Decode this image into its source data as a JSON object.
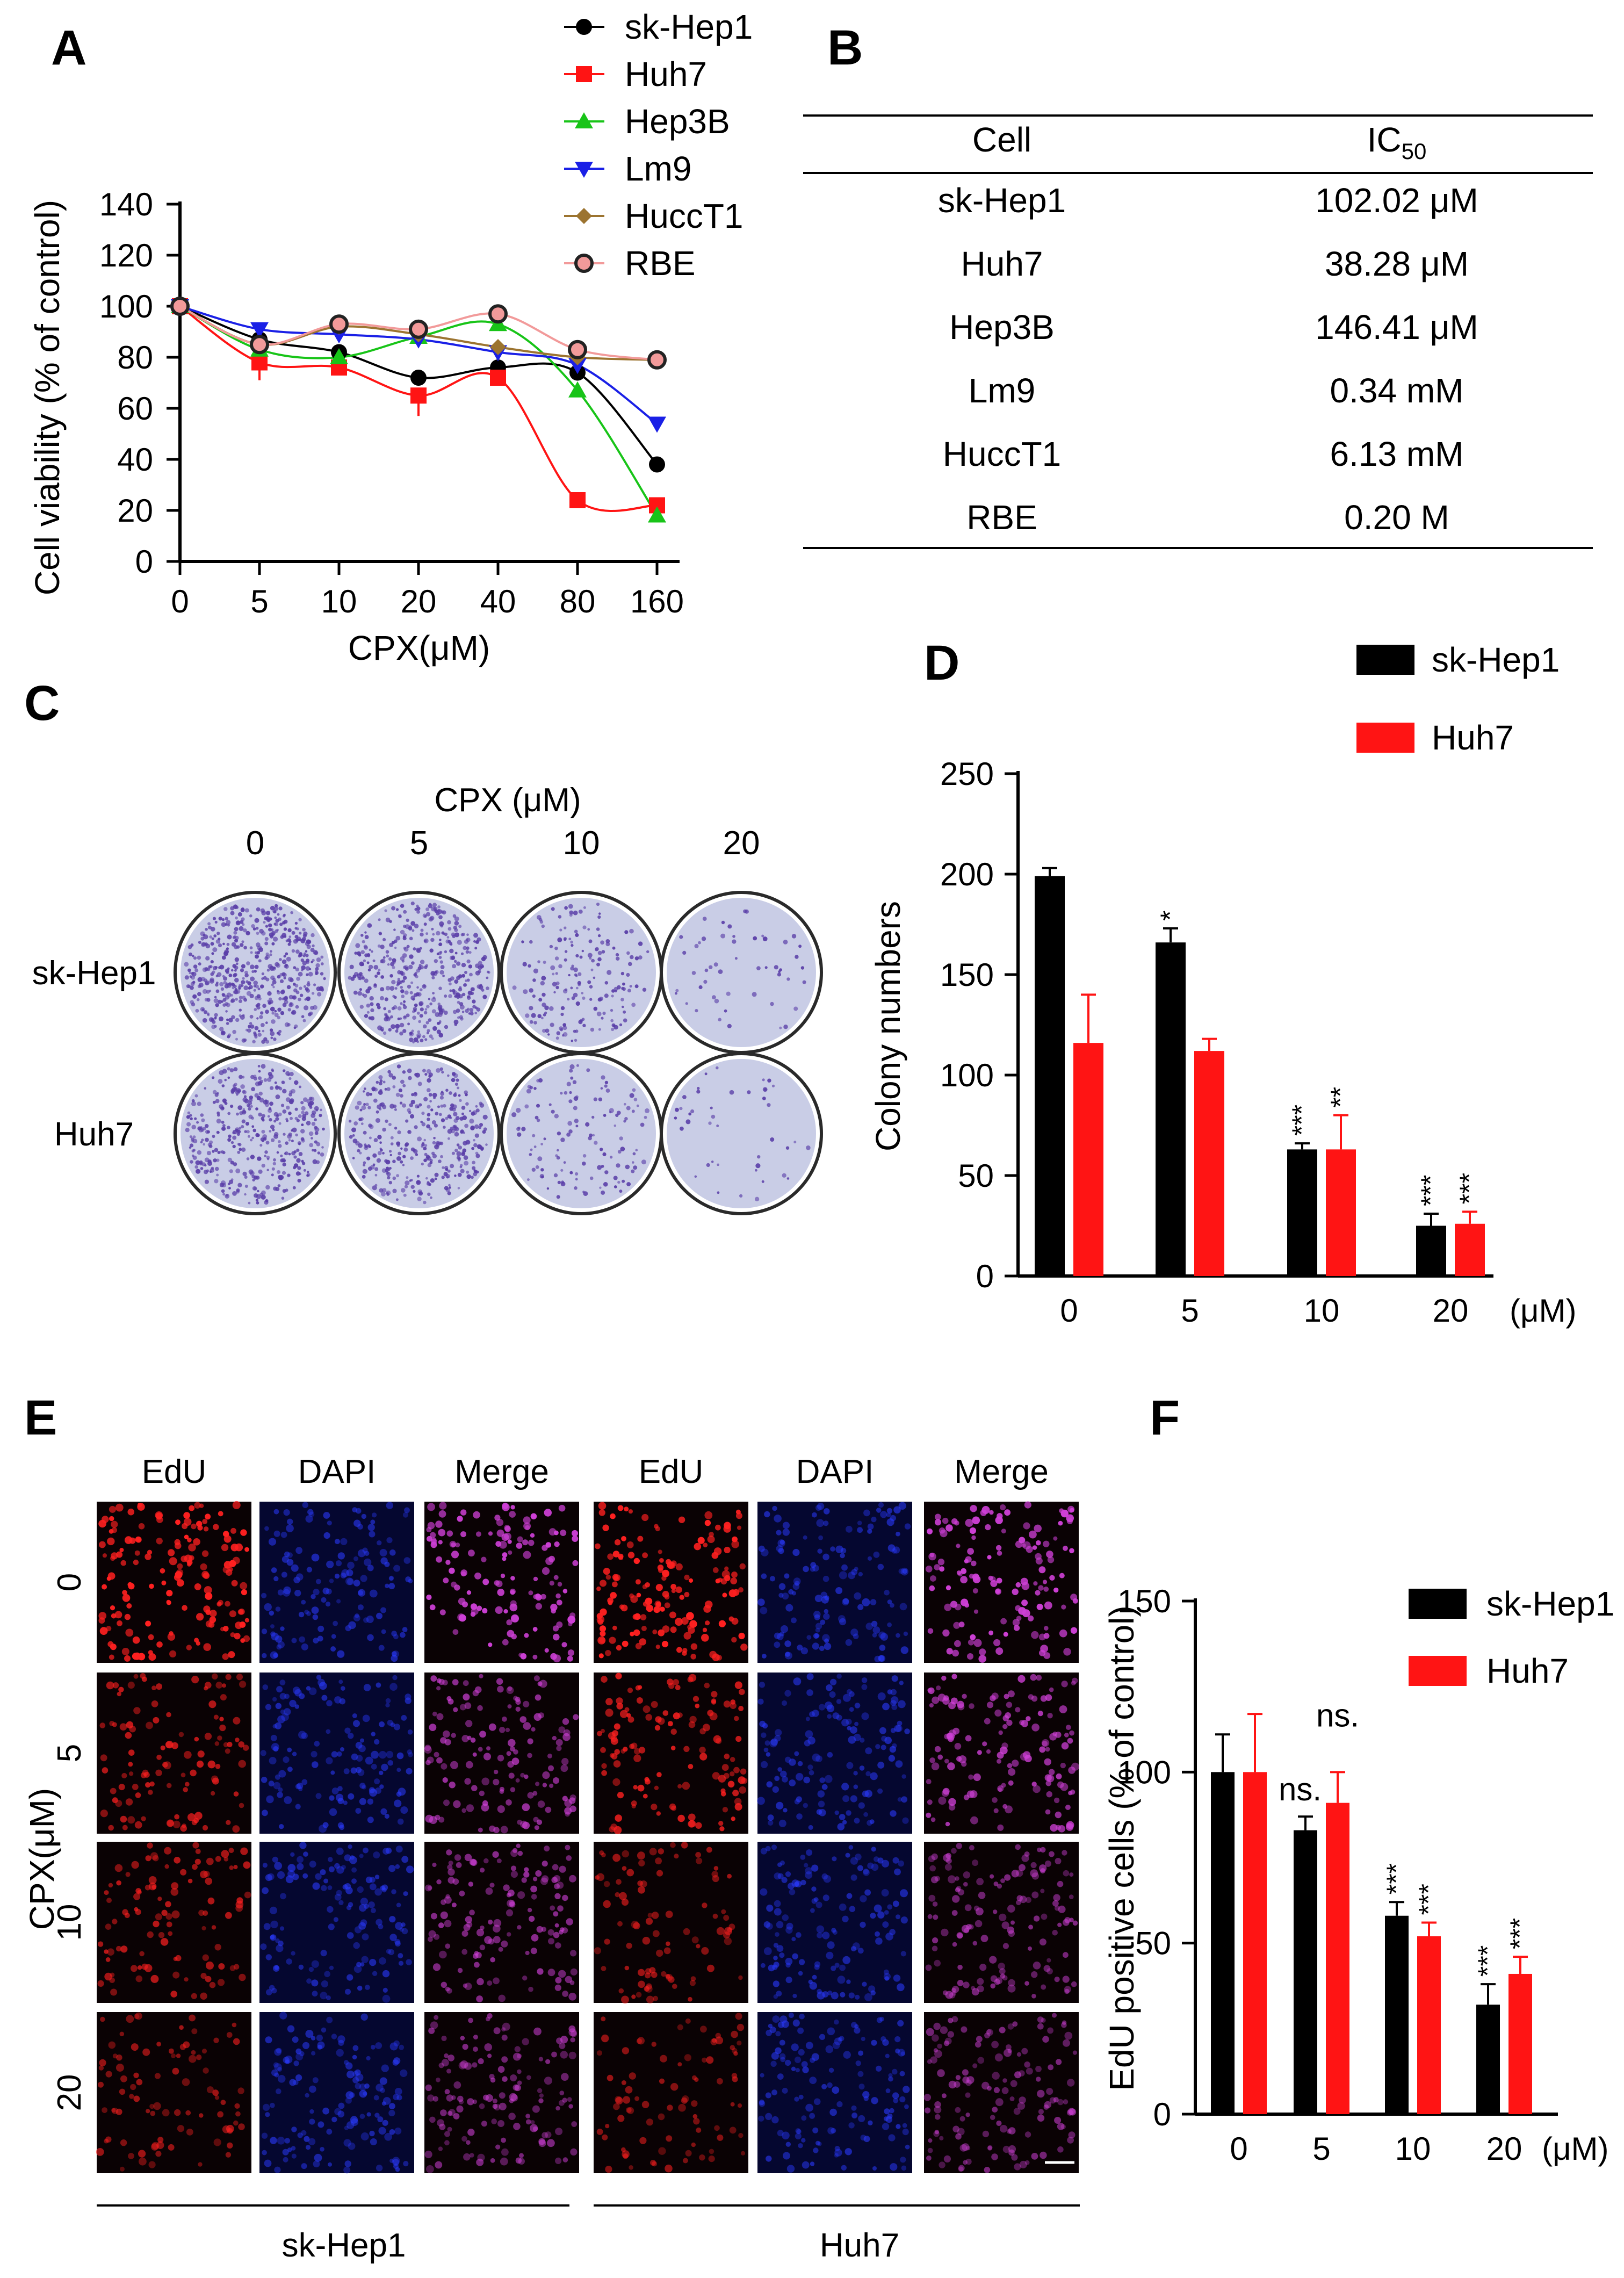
{
  "panels": {
    "A": "A",
    "B": "B",
    "C": "C",
    "D": "D",
    "E": "E",
    "F": "F"
  },
  "colors": {
    "black": "#000000",
    "red": "#ff1414",
    "green": "#18c418",
    "blue": "#1a20e6",
    "brown": "#9c7430",
    "pink": "#f29a9a",
    "plate_border": "#2a2a2a",
    "plate_fill": "#c9cde6",
    "colony": "#5a3ea8",
    "edu": "#ff2020",
    "dapi": "#2a3aff",
    "merge": "#d040d8"
  },
  "chart_data": [
    {
      "id": "A",
      "type": "line",
      "title": "",
      "xlabel": "CPX(μM)",
      "ylabel": "Cell viability (% of control)",
      "categories": [
        "0",
        "5",
        "10",
        "20",
        "40",
        "80",
        "160"
      ],
      "ylim": [
        0,
        140
      ],
      "yticks": [
        "0",
        "20",
        "40",
        "60",
        "80",
        "100",
        "120",
        "140"
      ],
      "series": [
        {
          "name": "sk-Hep1",
          "color": "#000000",
          "marker": "circle",
          "values": [
            100,
            87,
            82,
            72,
            76,
            74,
            38
          ]
        },
        {
          "name": "Huh7",
          "color": "#ff1414",
          "marker": "square",
          "values": [
            100,
            78,
            76,
            65,
            72,
            24,
            22
          ]
        },
        {
          "name": "Hep3B",
          "color": "#18c418",
          "marker": "triangle-up",
          "values": [
            100,
            83,
            80,
            88,
            93,
            67,
            18
          ]
        },
        {
          "name": "Lm9",
          "color": "#1a20e6",
          "marker": "triangle-down",
          "values": [
            100,
            91,
            89,
            87,
            82,
            77,
            54
          ]
        },
        {
          "name": "HuccT1",
          "color": "#9c7430",
          "marker": "diamond",
          "values": [
            100,
            85,
            92,
            89,
            84,
            80,
            79
          ]
        },
        {
          "name": "RBE",
          "color": "#f29a9a",
          "marker": "circle-ring",
          "values": [
            100,
            85,
            93,
            91,
            97,
            83,
            79
          ]
        }
      ]
    },
    {
      "id": "B",
      "type": "table",
      "columns": [
        "Cell",
        "IC50"
      ],
      "rows": [
        [
          "sk-Hep1",
          "102.02 μM"
        ],
        [
          "Huh7",
          "38.28  μM"
        ],
        [
          "Hep3B",
          "146.41 μM"
        ],
        [
          "Lm9",
          "0.34 mM"
        ],
        [
          "HuccT1",
          "6.13 mM"
        ],
        [
          "RBE",
          "0.20 M"
        ]
      ]
    },
    {
      "id": "D",
      "type": "bar",
      "ylabel": "Colony numbers",
      "unit": "(μM)",
      "categories": [
        "0",
        "5",
        "10",
        "20"
      ],
      "ylim": [
        0,
        250
      ],
      "yticks": [
        "0",
        "50",
        "100",
        "150",
        "200",
        "250"
      ],
      "series": [
        {
          "name": "sk-Hep1",
          "color": "#000000",
          "values": [
            199,
            166,
            63,
            25
          ],
          "errors": [
            4,
            7,
            3,
            6
          ],
          "significance": [
            "",
            "*",
            "***",
            "***"
          ]
        },
        {
          "name": "Huh7",
          "color": "#ff1414",
          "values": [
            116,
            112,
            63,
            26
          ],
          "errors": [
            24,
            6,
            17,
            6
          ],
          "significance": [
            "",
            "",
            "**",
            "***"
          ]
        }
      ]
    },
    {
      "id": "F",
      "type": "bar",
      "ylabel": "EdU positive cells (% of control)",
      "unit": "(μM)",
      "categories": [
        "0",
        "5",
        "10",
        "20"
      ],
      "ylim": [
        0,
        150
      ],
      "yticks": [
        "0",
        "50",
        "100",
        "150"
      ],
      "series": [
        {
          "name": "sk-Hep1",
          "color": "#000000",
          "values": [
            100,
            83,
            58,
            32
          ],
          "errors": [
            11,
            4,
            4,
            6
          ],
          "significance": [
            "",
            "ns.",
            "***",
            "***"
          ]
        },
        {
          "name": "Huh7",
          "color": "#ff1414",
          "values": [
            100,
            91,
            52,
            41
          ],
          "errors": [
            17,
            9,
            4,
            5
          ],
          "significance": [
            "",
            "ns.",
            "***",
            "***"
          ]
        }
      ]
    }
  ],
  "panel_c": {
    "title": "CPX (μM)",
    "doses": [
      "0",
      "5",
      "10",
      "20"
    ],
    "rows": [
      "sk-Hep1",
      "Huh7"
    ],
    "colony_density": [
      [
        1.0,
        0.85,
        0.35,
        0.1
      ],
      [
        0.8,
        0.7,
        0.25,
        0.08
      ]
    ]
  },
  "panel_e": {
    "channels": [
      "EdU",
      "DAPI",
      "Merge",
      "EdU",
      "DAPI",
      "Merge"
    ],
    "y_title": "CPX(μM)",
    "doses": [
      "0",
      "5",
      "10",
      "20"
    ],
    "groups": [
      "sk-Hep1",
      "Huh7"
    ],
    "edu_intensity": [
      [
        1.0,
        0.55,
        0.5,
        0.35
      ],
      [
        1.0,
        0.7,
        0.35,
        0.3
      ]
    ]
  }
}
